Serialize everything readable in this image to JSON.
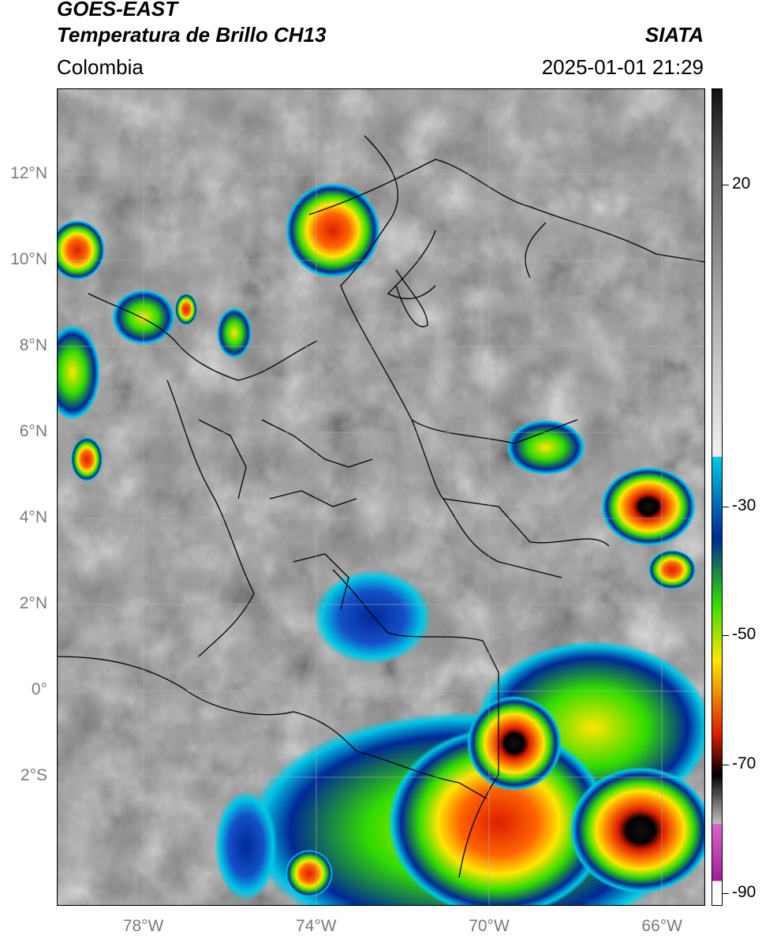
{
  "header": {
    "satellite": "GOES-EAST",
    "product": "Temperatura de Brillo CH13",
    "region": "Colombia",
    "source": "SIATA",
    "timestamp": "2025-01-01 21:29"
  },
  "map": {
    "lat_labels": [
      "12°N",
      "10°N",
      "8°N",
      "6°N",
      "4°N",
      "2°N",
      "0°",
      "2°S"
    ],
    "lon_labels": [
      "78°W",
      "74°W",
      "70°W",
      "66°W"
    ],
    "lat_values": [
      12,
      10,
      8,
      6,
      4,
      2,
      0,
      -2
    ],
    "lon_values": [
      -78,
      -74,
      -70,
      -66
    ],
    "lon_range": [
      -80,
      -65
    ],
    "lat_range": [
      -5,
      14
    ]
  },
  "colorbar": {
    "tick_labels": [
      "20",
      "-30",
      "-50",
      "-70",
      "-90"
    ],
    "tick_values": [
      20,
      -30,
      -50,
      -70,
      -90
    ],
    "colors": {
      "warm": "#c8c8c8",
      "cyan": "#00c8e6",
      "blue": "#002896",
      "green": "#32dc00",
      "yellow": "#ffe600",
      "red": "#dc1e00",
      "black": "#000000",
      "magenta": "#dc64c8",
      "purple": "#a01e96"
    }
  }
}
